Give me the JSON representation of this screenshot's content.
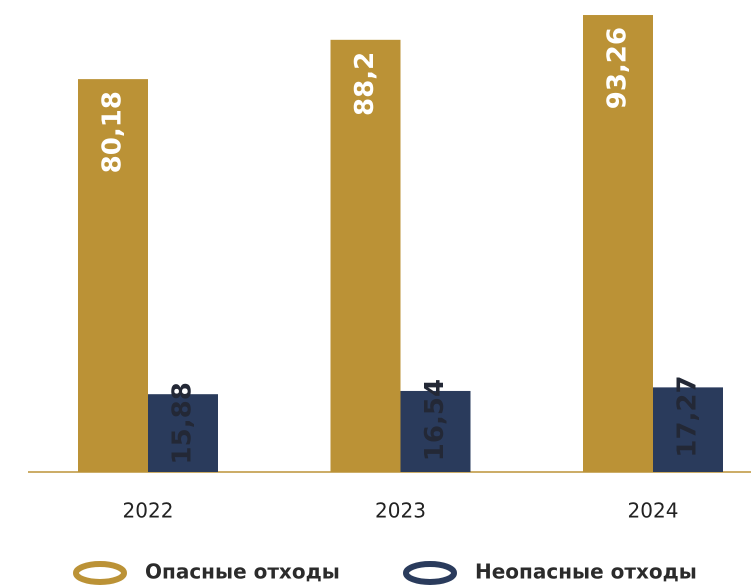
{
  "chart_data": {
    "type": "bar",
    "categories": [
      "2022",
      "2023",
      "2024"
    ],
    "series": [
      {
        "name": "Опасные отходы",
        "color": "#bb9236",
        "values": [
          80.18,
          88.2,
          93.26
        ],
        "value_labels": [
          "80,18",
          "88,2",
          "93,26"
        ]
      },
      {
        "name": "Неопасные отходы",
        "color": "#2a3b5c",
        "values": [
          15.88,
          16.54,
          17.27
        ],
        "value_labels": [
          "15,88",
          "16,54",
          "17,27"
        ]
      }
    ]
  }
}
